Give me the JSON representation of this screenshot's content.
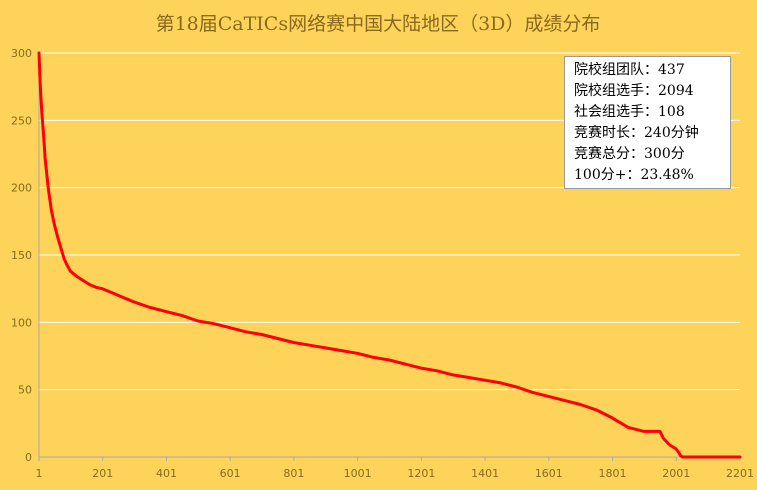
{
  "chart_data": {
    "type": "line",
    "title": "第18届CaTICs网络赛中国大陆地区（3D）成绩分布",
    "xlabel": "",
    "ylabel": "",
    "xlim": [
      1,
      2201
    ],
    "ylim": [
      0,
      300
    ],
    "x_ticks": [
      1,
      201,
      401,
      601,
      801,
      1001,
      1201,
      1401,
      1601,
      1801,
      2001,
      2201
    ],
    "y_ticks": [
      0,
      50,
      100,
      150,
      200,
      250,
      300
    ],
    "grid": "horizontal",
    "series": [
      {
        "name": "成绩",
        "color": "#ff0000",
        "x": [
          1,
          5,
          10,
          15,
          20,
          30,
          40,
          50,
          60,
          70,
          80,
          90,
          100,
          120,
          140,
          160,
          180,
          200,
          230,
          260,
          300,
          350,
          400,
          450,
          500,
          550,
          600,
          650,
          700,
          750,
          800,
          850,
          900,
          950,
          1000,
          1050,
          1100,
          1150,
          1200,
          1250,
          1300,
          1350,
          1400,
          1450,
          1500,
          1550,
          1600,
          1650,
          1700,
          1750,
          1800,
          1850,
          1900,
          1950,
          1960,
          1980,
          2000,
          2010,
          2015,
          2020,
          2100,
          2201
        ],
        "values": [
          300,
          275,
          255,
          240,
          222,
          200,
          183,
          172,
          163,
          155,
          147,
          142,
          138,
          134,
          131,
          128,
          126,
          125,
          122,
          119,
          115,
          111,
          108,
          105,
          101,
          99,
          96,
          93,
          91,
          88,
          85,
          83,
          81,
          79,
          77,
          74,
          72,
          69,
          66,
          64,
          61,
          59,
          57,
          55,
          52,
          48,
          45,
          42,
          39,
          35,
          29,
          22,
          19,
          19,
          14,
          9,
          6,
          3,
          1,
          0,
          0,
          0
        ]
      }
    ]
  },
  "info_box": {
    "lines": [
      "院校组团队：437",
      "院校组选手：2094",
      "社会组选手：108",
      "竞赛时长：240分钟",
      "竞赛总分：300分",
      "100分+：23.48%"
    ]
  },
  "colors": {
    "background": "#FDD35A",
    "gridline": "#ffffff",
    "axis": "#aaaaaa",
    "line": "#ff0000"
  }
}
